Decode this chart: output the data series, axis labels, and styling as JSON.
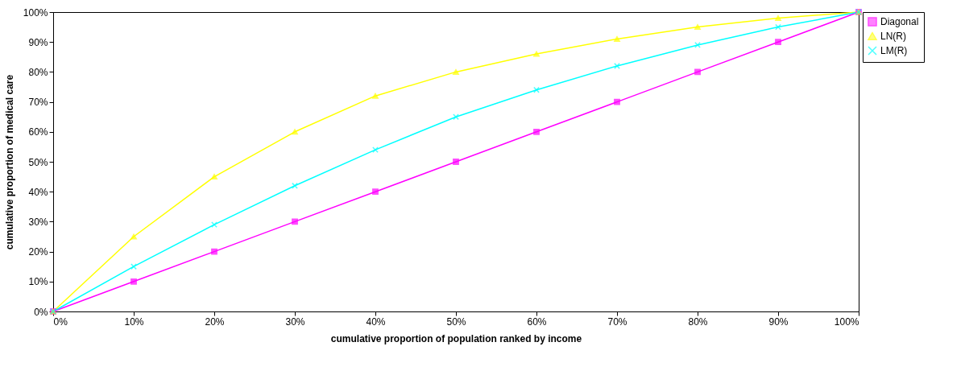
{
  "chart_data": {
    "type": "line",
    "xlabel": "cumulative proportion of population ranked by income",
    "ylabel": "cumulative proportion of medical care",
    "x": [
      0,
      10,
      20,
      30,
      40,
      50,
      60,
      70,
      80,
      90,
      100
    ],
    "series": [
      {
        "name": "Diagonal",
        "color": "#ff00ff",
        "marker": "square",
        "values": [
          0,
          10,
          20,
          30,
          40,
          50,
          60,
          70,
          80,
          90,
          100
        ]
      },
      {
        "name": "LN(R)",
        "color": "#ffff00",
        "marker": "triangle",
        "values": [
          0,
          25,
          45,
          60,
          72,
          80,
          86,
          91,
          95,
          98,
          100
        ]
      },
      {
        "name": "LM(R)",
        "color": "#00ffff",
        "marker": "cross",
        "values": [
          0,
          15,
          29,
          42,
          54,
          65,
          74,
          82,
          89,
          95,
          100
        ]
      }
    ],
    "xlim": [
      0,
      100
    ],
    "ylim": [
      0,
      100
    ],
    "xticks": [
      {
        "value": 0,
        "label": "0%"
      },
      {
        "value": 10,
        "label": "10%"
      },
      {
        "value": 20,
        "label": "20%"
      },
      {
        "value": 30,
        "label": "30%"
      },
      {
        "value": 40,
        "label": "40%"
      },
      {
        "value": 50,
        "label": "50%"
      },
      {
        "value": 60,
        "label": "60%"
      },
      {
        "value": 70,
        "label": "70%"
      },
      {
        "value": 80,
        "label": "80%"
      },
      {
        "value": 90,
        "label": "90%"
      },
      {
        "value": 100,
        "label": "100%"
      }
    ],
    "yticks": [
      {
        "value": 0,
        "label": "0%"
      },
      {
        "value": 10,
        "label": "10%"
      },
      {
        "value": 20,
        "label": "20%"
      },
      {
        "value": 30,
        "label": "30%"
      },
      {
        "value": 40,
        "label": "40%"
      },
      {
        "value": 50,
        "label": "50%"
      },
      {
        "value": 60,
        "label": "60%"
      },
      {
        "value": 70,
        "label": "70%"
      },
      {
        "value": 80,
        "label": "80%"
      },
      {
        "value": 90,
        "label": "90%"
      },
      {
        "value": 100,
        "label": "100%"
      }
    ],
    "legend": "right",
    "grid": false,
    "line_style": "solid"
  }
}
